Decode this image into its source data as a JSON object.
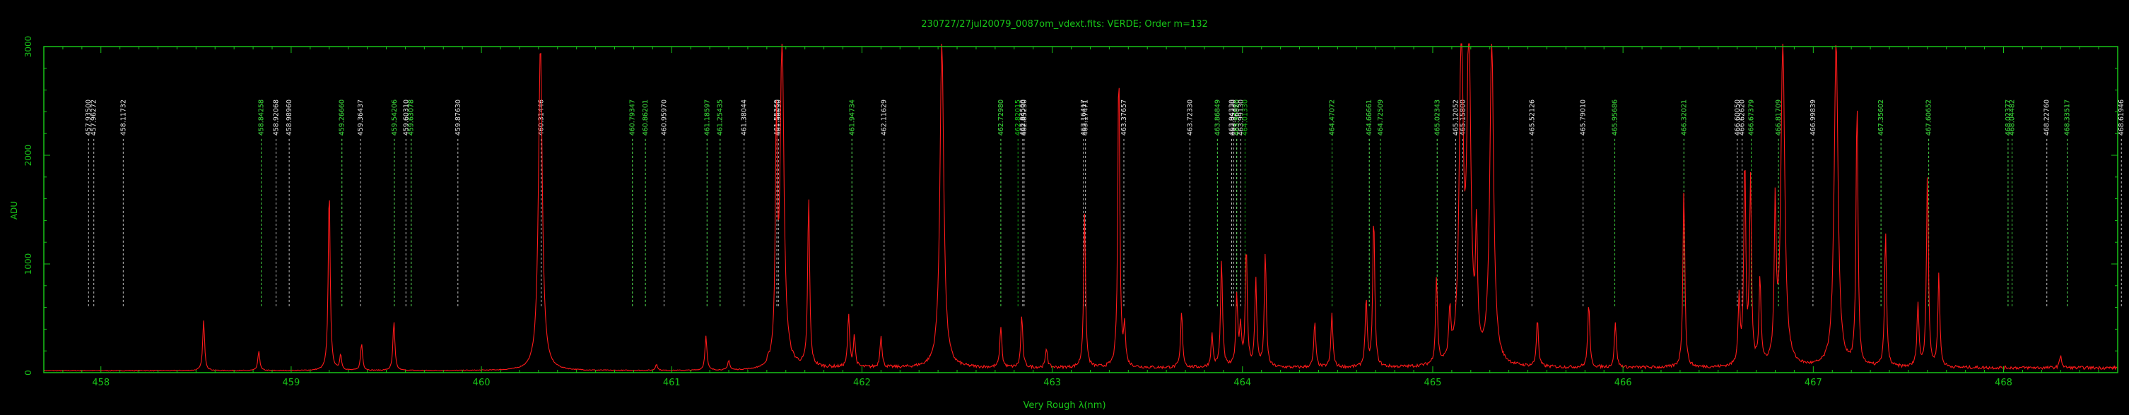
{
  "colors": {
    "background": "#000000",
    "axes": "#18c418",
    "spectrum": "#ff1a1a",
    "lines_green": "#18c418",
    "lines_white": "#e6e6e6"
  },
  "chart_data": {
    "type": "line",
    "title": "230727/27jul20079_0087om_vdext.fits: VERDE; Order m=132",
    "xlabel": "Very Rough λ(nm)",
    "ylabel": "ADU",
    "xlim": [
      457.7,
      468.6
    ],
    "ylim": [
      0,
      3000
    ],
    "x_ticks": [
      458,
      459,
      460,
      461,
      462,
      463,
      464,
      465,
      466,
      467,
      468
    ],
    "x_tick_labels": [
      "458",
      "459",
      "460",
      "461",
      "462",
      "463",
      "464",
      "465",
      "466",
      "467",
      "468"
    ],
    "y_ticks": [
      0,
      1000,
      2000,
      3000
    ],
    "y_tick_labels": [
      "0",
      "1000",
      "2000",
      "3000"
    ],
    "series": [
      {
        "continuum": 10,
        "peaks": [
          [
            458.54,
            460
          ],
          [
            458.83,
            180
          ],
          [
            459.2,
            1700
          ],
          [
            459.26,
            140
          ],
          [
            459.37,
            250
          ],
          [
            459.54,
            450
          ],
          [
            460.31,
            3000
          ],
          [
            460.92,
            60
          ],
          [
            461.18,
            320
          ],
          [
            461.3,
            90
          ],
          [
            461.55,
            2100
          ],
          [
            461.58,
            3000
          ],
          [
            461.72,
            1550
          ],
          [
            461.93,
            480
          ],
          [
            461.96,
            290
          ],
          [
            462.1,
            300
          ],
          [
            462.42,
            3000
          ],
          [
            462.73,
            380
          ],
          [
            462.84,
            480
          ],
          [
            462.97,
            180
          ],
          [
            463.17,
            1400
          ],
          [
            463.35,
            2800
          ],
          [
            463.38,
            350
          ],
          [
            463.68,
            520
          ],
          [
            463.84,
            300
          ],
          [
            463.89,
            1000
          ],
          [
            463.97,
            650
          ],
          [
            463.99,
            350
          ],
          [
            464.02,
            1100
          ],
          [
            464.07,
            800
          ],
          [
            464.12,
            1050
          ],
          [
            464.38,
            420
          ],
          [
            464.47,
            500
          ],
          [
            464.65,
            630
          ],
          [
            464.69,
            1400
          ],
          [
            465.02,
            800
          ],
          [
            465.09,
            450
          ],
          [
            465.15,
            3000
          ],
          [
            465.19,
            3000
          ],
          [
            465.23,
            1100
          ],
          [
            465.31,
            3000
          ],
          [
            465.55,
            450
          ],
          [
            465.82,
            600
          ],
          [
            465.96,
            420
          ],
          [
            466.32,
            1650
          ],
          [
            466.61,
            620
          ],
          [
            466.64,
            1900
          ],
          [
            466.67,
            1700
          ],
          [
            466.72,
            800
          ],
          [
            466.8,
            1400
          ],
          [
            466.84,
            3000
          ],
          [
            467.12,
            3000
          ],
          [
            467.23,
            2450
          ],
          [
            467.38,
            1250
          ],
          [
            467.55,
            580
          ],
          [
            467.6,
            1800
          ],
          [
            467.66,
            850
          ],
          [
            468.3,
            120
          ]
        ]
      }
    ],
    "line_ids": [
      {
        "x": 457.935,
        "label": "457.93500",
        "color": "white"
      },
      {
        "x": 457.96272,
        "label": "457.96272",
        "color": "white"
      },
      {
        "x": 458.11732,
        "label": "458.11732",
        "color": "white"
      },
      {
        "x": 458.84258,
        "label": "458.84258",
        "color": "white"
      },
      {
        "x": 458.84258,
        "label": "458.84258",
        "color": "green"
      },
      {
        "x": 458.92068,
        "label": "458.92068",
        "color": "white"
      },
      {
        "x": 458.9896,
        "label": "458.98960",
        "color": "white"
      },
      {
        "x": 459.2666,
        "label": "459.26660",
        "color": "white"
      },
      {
        "x": 459.2666,
        "label": "459.26660",
        "color": "green"
      },
      {
        "x": 459.36437,
        "label": "459.36437",
        "color": "white"
      },
      {
        "x": 459.54206,
        "label": "459.54206",
        "color": "white"
      },
      {
        "x": 459.54206,
        "label": "459.54206",
        "color": "green"
      },
      {
        "x": 459.6031,
        "label": "459.60310",
        "color": "white"
      },
      {
        "x": 459.63078,
        "label": "459.63078",
        "color": "white"
      },
      {
        "x": 459.63078,
        "label": "459.63078",
        "color": "green"
      },
      {
        "x": 459.8763,
        "label": "459.87630",
        "color": "white"
      },
      {
        "x": 460.31446,
        "label": "460.31446",
        "color": "white"
      },
      {
        "x": 460.79347,
        "label": "460.79347",
        "color": "white"
      },
      {
        "x": 460.79347,
        "label": "460.79347",
        "color": "green"
      },
      {
        "x": 460.86201,
        "label": "460.86201",
        "color": "white"
      },
      {
        "x": 460.86201,
        "label": "460.86201",
        "color": "green"
      },
      {
        "x": 460.9597,
        "label": "460.95970",
        "color": "white"
      },
      {
        "x": 461.18597,
        "label": "461.18597",
        "color": "white"
      },
      {
        "x": 461.18597,
        "label": "461.18597",
        "color": "green"
      },
      {
        "x": 461.25435,
        "label": "461.25435",
        "color": "white"
      },
      {
        "x": 461.25435,
        "label": "461.25435",
        "color": "green"
      },
      {
        "x": 461.38044,
        "label": "461.38044",
        "color": "white"
      },
      {
        "x": 461.5526,
        "label": "461.55260",
        "color": "white"
      },
      {
        "x": 461.5609,
        "label": "461.56090",
        "color": "white"
      },
      {
        "x": 461.94734,
        "label": "461.94734",
        "color": "white"
      },
      {
        "x": 461.94734,
        "label": "461.94734",
        "color": "green"
      },
      {
        "x": 462.11629,
        "label": "462.11629",
        "color": "white"
      },
      {
        "x": 462.7298,
        "label": "462.72980",
        "color": "white"
      },
      {
        "x": 462.7298,
        "label": "462.72980",
        "color": "green"
      },
      {
        "x": 462.82015,
        "label": "462.82015",
        "color": "green"
      },
      {
        "x": 462.845,
        "label": "462.84500",
        "color": "white"
      },
      {
        "x": 462.8523,
        "label": "462.85230",
        "color": "white"
      },
      {
        "x": 463.16417,
        "label": "463.16417",
        "color": "white"
      },
      {
        "x": 463.17471,
        "label": "463.17471",
        "color": "white"
      },
      {
        "x": 463.37657,
        "label": "463.37657",
        "color": "white"
      },
      {
        "x": 463.7233,
        "label": "463.72330",
        "color": "white"
      },
      {
        "x": 463.86849,
        "label": "463.86849",
        "color": "white"
      },
      {
        "x": 463.86849,
        "label": "463.86849",
        "color": "green"
      },
      {
        "x": 463.9433,
        "label": "463.94330",
        "color": "white"
      },
      {
        "x": 463.9533,
        "label": "463.95330",
        "color": "white"
      },
      {
        "x": 463.9692,
        "label": "463.96920",
        "color": "white"
      },
      {
        "x": 463.9708,
        "label": "463.97080",
        "color": "green"
      },
      {
        "x": 463.9913,
        "label": "463.99130",
        "color": "white"
      },
      {
        "x": 464.0133,
        "label": "464.01330",
        "color": "green"
      },
      {
        "x": 464.47072,
        "label": "464.47072",
        "color": "white"
      },
      {
        "x": 464.47072,
        "label": "464.47072",
        "color": "green"
      },
      {
        "x": 464.66661,
        "label": "464.66661",
        "color": "white"
      },
      {
        "x": 464.66661,
        "label": "464.66661",
        "color": "green"
      },
      {
        "x": 464.72509,
        "label": "464.72509",
        "color": "white"
      },
      {
        "x": 464.72509,
        "label": "464.72509",
        "color": "green"
      },
      {
        "x": 465.02343,
        "label": "465.02343",
        "color": "white"
      },
      {
        "x": 465.02343,
        "label": "465.02343",
        "color": "green"
      },
      {
        "x": 465.12052,
        "label": "465.12052",
        "color": "white"
      },
      {
        "x": 465.158,
        "label": "465.15800",
        "color": "white"
      },
      {
        "x": 465.52126,
        "label": "465.52126",
        "color": "white"
      },
      {
        "x": 465.7901,
        "label": "465.79010",
        "color": "white"
      },
      {
        "x": 465.95686,
        "label": "465.95686",
        "color": "white"
      },
      {
        "x": 465.95686,
        "label": "465.95686",
        "color": "green"
      },
      {
        "x": 466.32021,
        "label": "466.32021",
        "color": "white"
      },
      {
        "x": 466.32021,
        "label": "466.32021",
        "color": "green"
      },
      {
        "x": 466.6005,
        "label": "466.60050",
        "color": "white"
      },
      {
        "x": 466.6262,
        "label": "466.62620",
        "color": "white"
      },
      {
        "x": 466.67379,
        "label": "466.67379",
        "color": "white"
      },
      {
        "x": 466.67379,
        "label": "466.67379",
        "color": "green"
      },
      {
        "x": 466.81709,
        "label": "466.81709",
        "color": "white"
      },
      {
        "x": 466.81709,
        "label": "466.81709",
        "color": "green"
      },
      {
        "x": 466.99839,
        "label": "466.99839",
        "color": "white"
      },
      {
        "x": 467.35602,
        "label": "467.35602",
        "color": "white"
      },
      {
        "x": 467.35602,
        "label": "467.35602",
        "color": "green"
      },
      {
        "x": 467.60652,
        "label": "467.60652",
        "color": "white"
      },
      {
        "x": 467.60652,
        "label": "467.60652",
        "color": "green"
      },
      {
        "x": 468.02377,
        "label": "468.02377",
        "color": "white"
      },
      {
        "x": 468.02377,
        "label": "468.02377",
        "color": "green"
      },
      {
        "x": 468.04482,
        "label": "468.04482",
        "color": "white"
      },
      {
        "x": 468.04482,
        "label": "468.04482",
        "color": "green"
      },
      {
        "x": 468.2276,
        "label": "468.22760",
        "color": "white"
      },
      {
        "x": 468.33517,
        "label": "468.33517",
        "color": "white"
      },
      {
        "x": 468.33517,
        "label": "468.33517",
        "color": "green"
      },
      {
        "x": 468.61946,
        "label": "468.61946",
        "color": "white"
      }
    ],
    "grid": false
  }
}
